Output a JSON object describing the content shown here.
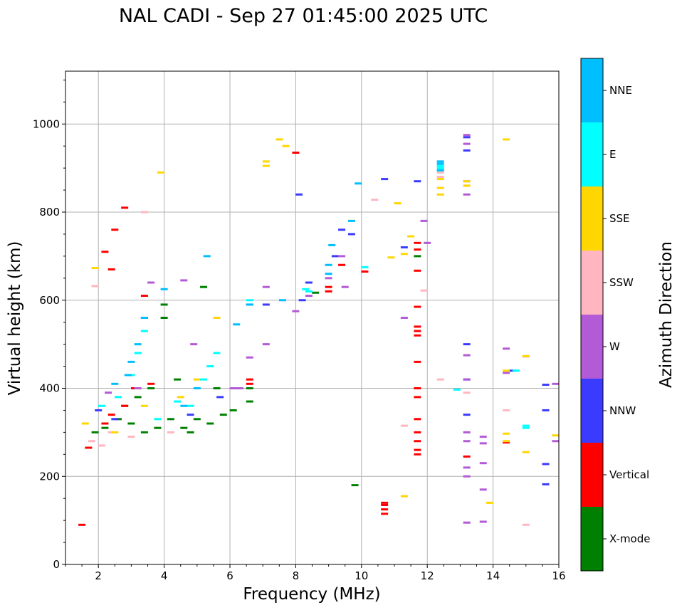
{
  "chart_data": {
    "type": "scatter",
    "title": "NAL CADI - Sep 27 01:45:00 2025 UTC",
    "xlabel": "Frequency (MHz)",
    "ylabel": "Virtual height (km)",
    "xlim": [
      1,
      16
    ],
    "ylim": [
      0,
      1120
    ],
    "xticks": [
      2,
      4,
      6,
      8,
      10,
      12,
      14,
      16
    ],
    "yticks": [
      0,
      200,
      400,
      600,
      800,
      1000
    ],
    "grid": true,
    "colorbar": {
      "title": "Azimuth Direction",
      "categories": [
        {
          "name": "X-mode",
          "color": "#008000"
        },
        {
          "name": "Vertical",
          "color": "#ff0000"
        },
        {
          "name": "NNW",
          "color": "#3b3bff"
        },
        {
          "name": "W",
          "color": "#b35ad6"
        },
        {
          "name": "SSW",
          "color": "#ffb6c1"
        },
        {
          "name": "SSE",
          "color": "#ffd700"
        },
        {
          "name": "E",
          "color": "#00ffff"
        },
        {
          "name": "NNE",
          "color": "#00bfff"
        }
      ]
    },
    "series": [
      {
        "name": "X-mode",
        "points": [
          [
            1.9,
            300
          ],
          [
            2.2,
            310
          ],
          [
            2.6,
            330
          ],
          [
            3.0,
            320
          ],
          [
            3.4,
            300
          ],
          [
            3.8,
            310
          ],
          [
            4.2,
            330
          ],
          [
            4.6,
            310
          ],
          [
            5.0,
            330
          ],
          [
            5.4,
            320
          ],
          [
            5.8,
            340
          ],
          [
            6.1,
            350
          ],
          [
            6.6,
            370
          ],
          [
            6.6,
            400
          ],
          [
            4.0,
            560
          ],
          [
            4.0,
            590
          ],
          [
            5.2,
            630
          ],
          [
            8.6,
            617
          ],
          [
            9.8,
            180
          ],
          [
            11.7,
            700
          ],
          [
            3.2,
            380
          ],
          [
            3.6,
            400
          ],
          [
            4.4,
            420
          ],
          [
            2.8,
            360
          ],
          [
            5.6,
            400
          ],
          [
            4.8,
            300
          ]
        ]
      },
      {
        "name": "Vertical",
        "points": [
          [
            1.5,
            90
          ],
          [
            1.7,
            265
          ],
          [
            2.2,
            710
          ],
          [
            2.4,
            670
          ],
          [
            2.5,
            760
          ],
          [
            2.8,
            810
          ],
          [
            3.4,
            610
          ],
          [
            2.4,
            340
          ],
          [
            2.8,
            360
          ],
          [
            3.1,
            400
          ],
          [
            3.6,
            410
          ],
          [
            2.2,
            320
          ],
          [
            6.6,
            410
          ],
          [
            6.6,
            420
          ],
          [
            8.0,
            935
          ],
          [
            9.0,
            630
          ],
          [
            9.0,
            620
          ],
          [
            9.4,
            680
          ],
          [
            10.1,
            665
          ],
          [
            10.7,
            115
          ],
          [
            10.7,
            125
          ],
          [
            10.7,
            135
          ],
          [
            10.7,
            140
          ],
          [
            11.7,
            730
          ],
          [
            11.7,
            715
          ],
          [
            11.7,
            667
          ],
          [
            11.7,
            585
          ],
          [
            11.7,
            520
          ],
          [
            11.7,
            530
          ],
          [
            11.7,
            540
          ],
          [
            11.7,
            460
          ],
          [
            11.7,
            400
          ],
          [
            11.7,
            380
          ],
          [
            11.7,
            330
          ],
          [
            11.7,
            300
          ],
          [
            11.7,
            280
          ],
          [
            11.7,
            260
          ],
          [
            11.7,
            250
          ],
          [
            13.2,
            245
          ],
          [
            14.4,
            277
          ]
        ]
      },
      {
        "name": "NNW",
        "points": [
          [
            2.0,
            350
          ],
          [
            2.5,
            330
          ],
          [
            3.4,
            560
          ],
          [
            4.8,
            340
          ],
          [
            5.7,
            380
          ],
          [
            6.6,
            590
          ],
          [
            7.1,
            590
          ],
          [
            8.1,
            840
          ],
          [
            8.2,
            600
          ],
          [
            8.4,
            640
          ],
          [
            9.2,
            700
          ],
          [
            9.4,
            760
          ],
          [
            9.7,
            750
          ],
          [
            10.7,
            875
          ],
          [
            11.3,
            720
          ],
          [
            11.7,
            870
          ],
          [
            13.2,
            940
          ],
          [
            13.2,
            970
          ],
          [
            13.2,
            500
          ],
          [
            13.2,
            420
          ],
          [
            13.2,
            340
          ],
          [
            15.6,
            408
          ],
          [
            15.6,
            350
          ],
          [
            15.6,
            228
          ],
          [
            15.6,
            182
          ],
          [
            14.6,
            440
          ]
        ]
      },
      {
        "name": "W",
        "points": [
          [
            2.3,
            390
          ],
          [
            3.2,
            400
          ],
          [
            3.6,
            640
          ],
          [
            4.6,
            645
          ],
          [
            4.9,
            500
          ],
          [
            5.6,
            560
          ],
          [
            6.1,
            400
          ],
          [
            6.3,
            400
          ],
          [
            6.6,
            470
          ],
          [
            7.1,
            630
          ],
          [
            7.1,
            500
          ],
          [
            8.0,
            575
          ],
          [
            8.4,
            610
          ],
          [
            9.0,
            650
          ],
          [
            9.4,
            700
          ],
          [
            9.5,
            630
          ],
          [
            11.3,
            560
          ],
          [
            11.9,
            780
          ],
          [
            12.0,
            730
          ],
          [
            13.2,
            975
          ],
          [
            13.2,
            955
          ],
          [
            13.2,
            870
          ],
          [
            13.2,
            840
          ],
          [
            13.2,
            475
          ],
          [
            13.2,
            420
          ],
          [
            13.2,
            300
          ],
          [
            13.2,
            280
          ],
          [
            13.2,
            220
          ],
          [
            13.2,
            200
          ],
          [
            13.2,
            95
          ],
          [
            13.7,
            290
          ],
          [
            13.7,
            275
          ],
          [
            13.7,
            230
          ],
          [
            13.7,
            170
          ],
          [
            13.7,
            97
          ],
          [
            14.4,
            490
          ],
          [
            14.4,
            435
          ],
          [
            15.9,
            410
          ],
          [
            15.9,
            280
          ]
        ]
      },
      {
        "name": "SSW",
        "points": [
          [
            1.8,
            280
          ],
          [
            2.1,
            270
          ],
          [
            2.4,
            300
          ],
          [
            3.0,
            290
          ],
          [
            3.4,
            800
          ],
          [
            4.2,
            300
          ],
          [
            1.9,
            632
          ],
          [
            10.4,
            828
          ],
          [
            11.3,
            315
          ],
          [
            11.9,
            622
          ],
          [
            12.4,
            890
          ],
          [
            12.4,
            880
          ],
          [
            12.4,
            420
          ],
          [
            13.2,
            860
          ],
          [
            13.2,
            390
          ],
          [
            14.4,
            350
          ],
          [
            15.0,
            90
          ],
          [
            15.0,
            472
          ]
        ]
      },
      {
        "name": "SSE",
        "points": [
          [
            1.6,
            320
          ],
          [
            1.9,
            673
          ],
          [
            2.5,
            300
          ],
          [
            3.4,
            360
          ],
          [
            3.9,
            890
          ],
          [
            4.5,
            380
          ],
          [
            5.0,
            420
          ],
          [
            5.6,
            560
          ],
          [
            7.1,
            905
          ],
          [
            7.1,
            915
          ],
          [
            7.5,
            965
          ],
          [
            7.7,
            950
          ],
          [
            10.9,
            697
          ],
          [
            11.1,
            820
          ],
          [
            11.3,
            705
          ],
          [
            11.3,
            155
          ],
          [
            11.5,
            745
          ],
          [
            12.4,
            855
          ],
          [
            12.4,
            840
          ],
          [
            12.4,
            875
          ],
          [
            13.2,
            870
          ],
          [
            13.2,
            860
          ],
          [
            13.9,
            140
          ],
          [
            14.4,
            965
          ],
          [
            14.4,
            440
          ],
          [
            14.4,
            297
          ],
          [
            14.4,
            280
          ],
          [
            15.0,
            255
          ],
          [
            15.0,
            473
          ],
          [
            15.9,
            293
          ]
        ]
      },
      {
        "name": "E",
        "points": [
          [
            2.1,
            360
          ],
          [
            2.6,
            380
          ],
          [
            3.0,
            430
          ],
          [
            3.2,
            480
          ],
          [
            3.4,
            530
          ],
          [
            3.8,
            330
          ],
          [
            4.4,
            370
          ],
          [
            4.8,
            360
          ],
          [
            5.2,
            420
          ],
          [
            5.4,
            450
          ],
          [
            5.6,
            480
          ],
          [
            6.6,
            600
          ],
          [
            8.3,
            625
          ],
          [
            8.4,
            620
          ],
          [
            10.1,
            675
          ],
          [
            12.4,
            895
          ],
          [
            12.4,
            900
          ],
          [
            12.4,
            905
          ],
          [
            12.9,
            397
          ],
          [
            14.7,
            440
          ],
          [
            15.0,
            310
          ],
          [
            15.0,
            315
          ]
        ]
      },
      {
        "name": "NNE",
        "points": [
          [
            2.5,
            410
          ],
          [
            2.9,
            430
          ],
          [
            3.0,
            460
          ],
          [
            3.2,
            500
          ],
          [
            3.4,
            560
          ],
          [
            4.0,
            625
          ],
          [
            4.6,
            360
          ],
          [
            5.0,
            400
          ],
          [
            5.3,
            700
          ],
          [
            6.2,
            545
          ],
          [
            6.6,
            590
          ],
          [
            7.6,
            600
          ],
          [
            9.0,
            680
          ],
          [
            9.0,
            660
          ],
          [
            9.1,
            725
          ],
          [
            9.7,
            780
          ],
          [
            9.9,
            865
          ],
          [
            12.4,
            910
          ],
          [
            12.4,
            915
          ],
          [
            12.4,
            895
          ]
        ]
      }
    ]
  }
}
